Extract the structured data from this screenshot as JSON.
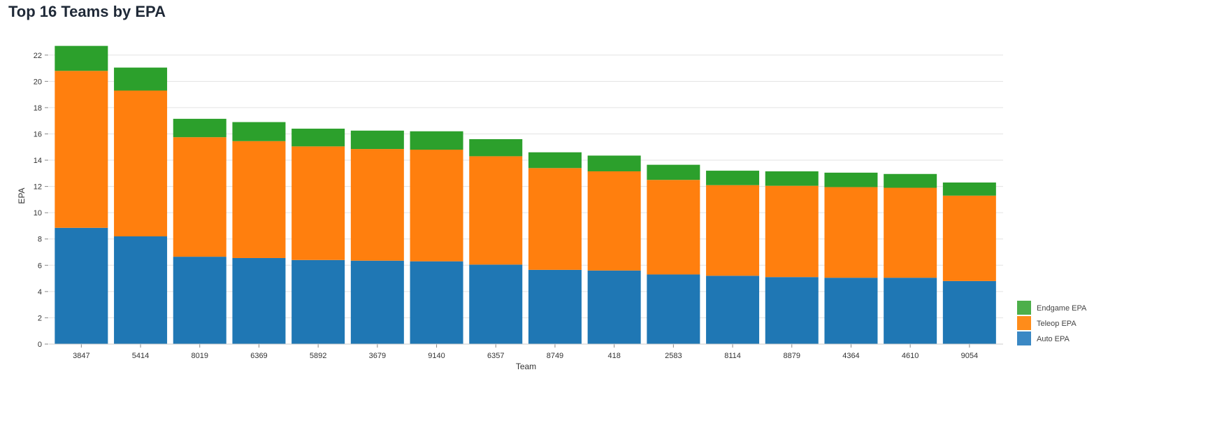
{
  "page": {
    "title": "Top 16 Teams by EPA"
  },
  "chart_data": {
    "type": "bar",
    "stacked": true,
    "title": "Top 16 Teams by EPA",
    "xlabel": "Team",
    "ylabel": "EPA",
    "ylim": [
      0,
      23
    ],
    "yticks": [
      0,
      2,
      4,
      6,
      8,
      10,
      12,
      14,
      16,
      18,
      20,
      22
    ],
    "grid": true,
    "legend_position": "bottom-right",
    "categories": [
      "3847",
      "5414",
      "8019",
      "6369",
      "5892",
      "3679",
      "9140",
      "6357",
      "8749",
      "418",
      "2583",
      "8114",
      "8879",
      "4364",
      "4610",
      "9054"
    ],
    "series": [
      {
        "name": "Auto EPA",
        "color": "#1f77b4",
        "values": [
          8.85,
          8.2,
          6.65,
          6.55,
          6.4,
          6.35,
          6.3,
          6.05,
          5.65,
          5.6,
          5.3,
          5.2,
          5.1,
          5.05,
          5.05,
          4.8
        ]
      },
      {
        "name": "Teleop EPA",
        "color": "#ff7f0e",
        "values": [
          11.95,
          11.1,
          9.1,
          8.9,
          8.65,
          8.5,
          8.5,
          8.25,
          7.75,
          7.55,
          7.2,
          6.9,
          6.95,
          6.9,
          6.85,
          6.5
        ]
      },
      {
        "name": "Endgame EPA",
        "color": "#2ca02c",
        "values": [
          1.9,
          1.75,
          1.4,
          1.45,
          1.35,
          1.4,
          1.4,
          1.3,
          1.2,
          1.2,
          1.15,
          1.1,
          1.1,
          1.1,
          1.05,
          1.0
        ]
      }
    ],
    "legend_order": [
      "Endgame EPA",
      "Teleop EPA",
      "Auto EPA"
    ],
    "legend_colors": {
      "Endgame EPA": "#4daf4a",
      "Teleop EPA": "#ff8c1a",
      "Auto EPA": "#3a88c4"
    }
  }
}
